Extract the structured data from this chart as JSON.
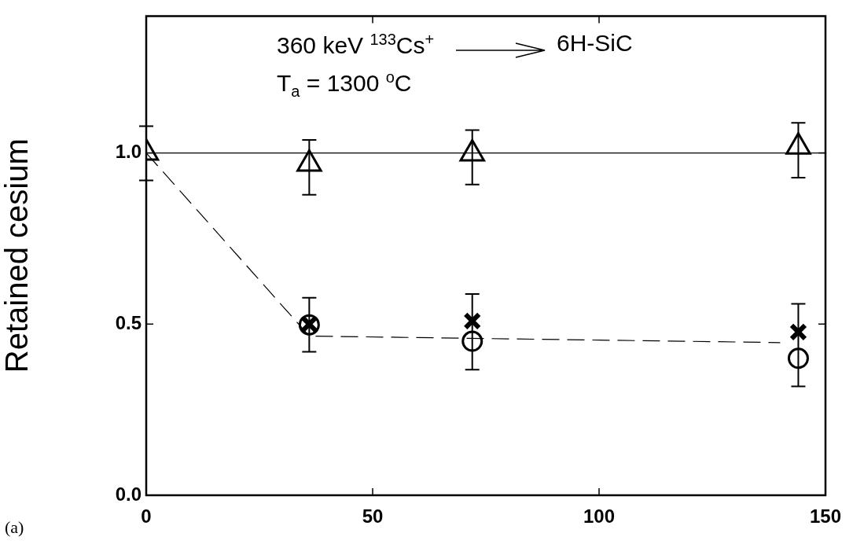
{
  "chart_data": {
    "type": "scatter",
    "ylabel": "Retained cesium",
    "annotations": [
      "360 keV $^{133}$Cs$^{+}$",
      "6H-SiC",
      "T$_{a}$ = 1300 $^{o}$C",
      "(a)"
    ],
    "xlim": [
      0,
      150
    ],
    "xticks": [
      0,
      50,
      100,
      150
    ],
    "ylim": [
      0,
      1.4
    ],
    "yticks": [
      {
        "value": 0,
        "label": "0.0"
      },
      {
        "value": 0.5,
        "label": "0.5"
      },
      {
        "value": 1,
        "label": "1.0"
      }
    ],
    "grid": false,
    "legend": false,
    "series": [
      {
        "type": "line",
        "color": "#000000",
        "marker": "none",
        "line_style": "solid",
        "x": [
          0,
          150
        ],
        "values": [
          1.0,
          1.0
        ]
      },
      {
        "type": "line",
        "color": "#000000",
        "marker": "none",
        "line_style": "dashed",
        "x": [
          0,
          36,
          140
        ],
        "values": [
          1.0,
          0.465,
          0.446
        ]
      },
      {
        "type": "scatter",
        "color": "#000000",
        "marker": "triangle",
        "x": [
          0,
          36,
          72,
          144
        ],
        "values": [
          1.0,
          0.968,
          0.998,
          1.018
        ],
        "errors": [
          [
            0.92,
            1.078
          ],
          [
            0.878,
            1.038
          ],
          [
            0.908,
            1.067
          ],
          [
            0.928,
            1.088
          ]
        ]
      },
      {
        "type": "scatter",
        "color": "#000000",
        "marker": "cross",
        "x": [
          36,
          72,
          144
        ],
        "values": [
          0.5,
          0.509,
          0.477
        ]
      },
      {
        "type": "scatter",
        "color": "#000000",
        "marker": "circle",
        "x": [
          36,
          72,
          144
        ],
        "values": [
          0.498,
          0.45,
          0.4
        ],
        "errors": [
          [
            0.419,
            0.577
          ],
          [
            0.367,
            0.588
          ],
          [
            0.318,
            0.559
          ]
        ]
      }
    ]
  }
}
